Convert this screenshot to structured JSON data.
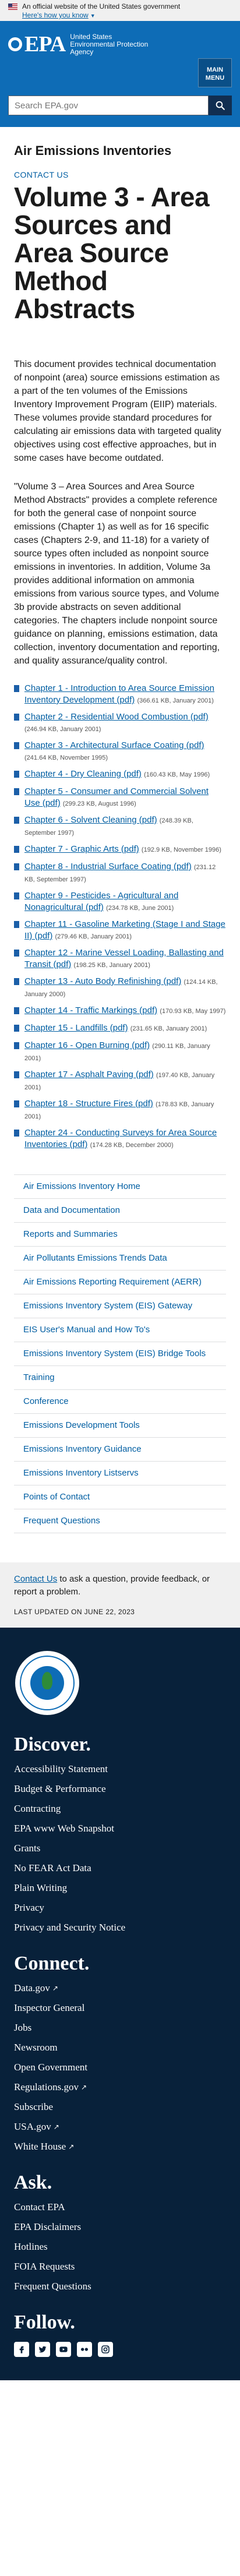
{
  "gov_banner": {
    "text": "An official website of the United States government",
    "link": "Here's how you know"
  },
  "header": {
    "acronym": "EPA",
    "agency_name": "United States Environmental Protection Agency",
    "menu_label_1": "MAIN",
    "menu_label_2": "MENU",
    "search_placeholder": "Search EPA.gov"
  },
  "page": {
    "section_title": "Air Emissions Inventories",
    "contact_link": "CONTACT US",
    "title": "Volume 3 - Area Sources and Area Source Method Abstracts",
    "intro_1": "This document provides technical documentation of nonpoint (area) source emissions estimation as a part of the ten volumes of the Emissions Inventory Improvement Program (EIIP) materials. These volumes provide standard procedures for calculating air emissions data with targeted quality objectives using cost effective approaches, but in some cases have become outdated.",
    "intro_2": "\"Volume 3 – Area Sources and Area Source Method Abstracts\" provides a complete reference for both the general case of nonpoint source emissions (Chapter 1) as well as for 16 specific cases (Chapters 2-9, and 11-18) for a variety of source types often included as nonpoint source emissions in inventories. In addition, Volume 3a provides additional information on ammonia emissions from various source types, and Volume 3b provide abstracts on seven additional categories.  The chapters include nonpoint source guidance on planning, emissions estimation, data collection, inventory documentation and reporting, and quality assurance/quality control."
  },
  "chapters": [
    {
      "title": "Chapter 1 - Introduction to Area Source Emission Inventory Development (pdf)",
      "meta": "(366.61 KB, January 2001)"
    },
    {
      "title": "Chapter 2 - Residential Wood Combustion (pdf)",
      "meta": "(246.94 KB, January 2001)"
    },
    {
      "title": "Chapter 3 - Architectural Surface Coating (pdf)",
      "meta": "(241.64 KB, November 1995)"
    },
    {
      "title": "Chapter 4 - Dry Cleaning (pdf)",
      "meta": "(160.43 KB, May 1996)"
    },
    {
      "title": "Chapter 5 - Consumer and Commercial Solvent Use (pdf)",
      "meta": "(299.23 KB, August 1996)"
    },
    {
      "title": "Chapter 6 - Solvent Cleaning (pdf)",
      "meta": "(248.39 KB, September 1997)"
    },
    {
      "title": "Chapter 7 - Graphic Arts (pdf)",
      "meta": "(192.9 KB, November 1996)"
    },
    {
      "title": "Chapter 8 - Industrial Surface Coating (pdf)",
      "meta": "(231.12 KB, September 1997)"
    },
    {
      "title": "Chapter 9 - Pesticides - Agricultural and Nonagricultural (pdf)",
      "meta": "(234.78 KB, June 2001)"
    },
    {
      "title": "Chapter 11 - Gasoline Marketing (Stage I and Stage II) (pdf)",
      "meta": "(279.46 KB, January 2001)"
    },
    {
      "title": "Chapter 12 - Marine Vessel Loading, Ballasting and Transit (pdf)",
      "meta": "(198.25 KB, January 2001)"
    },
    {
      "title": "Chapter 13 - Auto Body Refinishing (pdf)",
      "meta": "(124.14 KB, January 2000)"
    },
    {
      "title": "Chapter 14 - Traffic Markings (pdf)",
      "meta": "(170.93 KB, May 1997)"
    },
    {
      "title": "Chapter 15 - Landfills (pdf)",
      "meta": "(231.65 KB, January 2001)"
    },
    {
      "title": "Chapter 16 - Open Burning (pdf)",
      "meta": "(290.11 KB, January 2001)"
    },
    {
      "title": "Chapter 17 - Asphalt Paving (pdf)",
      "meta": "(197.40 KB, January 2001)"
    },
    {
      "title": "Chapter 18 - Structure Fires (pdf)",
      "meta": "(178.83 KB, January 2001)"
    },
    {
      "title": "Chapter 24 - Conducting Surveys for Area Source Inventories (pdf)",
      "meta": "(174.28 KB, December 2000)"
    }
  ],
  "side_nav": [
    "Air Emissions Inventory Home",
    "Data and Documentation",
    "Reports and Summaries",
    "Air Pollutants Emissions Trends Data",
    "Air Emissions Reporting Requirement (AERR)",
    "Emissions Inventory System (EIS) Gateway",
    "EIS User's Manual and How To's",
    "Emissions Inventory System (EIS) Bridge Tools",
    "Training",
    "Conference",
    "Emissions Development Tools",
    "Emissions Inventory Guidance",
    "Emissions Inventory Listservs",
    "Points of Contact",
    "Frequent Questions"
  ],
  "contact_band": {
    "link": "Contact Us",
    "text": " to ask a question, provide feedback, or report a problem.",
    "last_updated": "LAST UPDATED ON JUNE 22, 2023"
  },
  "footer": {
    "discover_title": "Discover.",
    "discover_links": [
      {
        "label": "Accessibility Statement",
        "external": false
      },
      {
        "label": "Budget & Performance",
        "external": false
      },
      {
        "label": "Contracting",
        "external": false
      },
      {
        "label": "EPA www Web Snapshot",
        "external": false
      },
      {
        "label": "Grants",
        "external": false
      },
      {
        "label": "No FEAR Act Data",
        "external": false
      },
      {
        "label": "Plain Writing",
        "external": false
      },
      {
        "label": "Privacy",
        "external": false
      },
      {
        "label": "Privacy and Security Notice",
        "external": false
      }
    ],
    "connect_title": "Connect.",
    "connect_links": [
      {
        "label": "Data.gov",
        "external": true
      },
      {
        "label": "Inspector General",
        "external": false
      },
      {
        "label": "Jobs",
        "external": false
      },
      {
        "label": "Newsroom",
        "external": false
      },
      {
        "label": "Open Government",
        "external": false
      },
      {
        "label": "Regulations.gov",
        "external": true
      },
      {
        "label": "Subscribe",
        "external": false
      },
      {
        "label": "USA.gov",
        "external": true
      },
      {
        "label": "White House",
        "external": true
      }
    ],
    "ask_title": "Ask.",
    "ask_links": [
      {
        "label": "Contact EPA",
        "external": false
      },
      {
        "label": "EPA Disclaimers",
        "external": false
      },
      {
        "label": "Hotlines",
        "external": false
      },
      {
        "label": "FOIA Requests",
        "external": false
      },
      {
        "label": "Frequent Questions",
        "external": false
      }
    ],
    "follow_title": "Follow.",
    "social_icons": [
      "facebook-icon",
      "twitter-icon",
      "youtube-icon",
      "flickr-icon",
      "instagram-icon"
    ]
  },
  "colors": {
    "header_blue": "#0e6cb6",
    "link_blue": "#005ea2",
    "footer_navy": "#08213a"
  }
}
